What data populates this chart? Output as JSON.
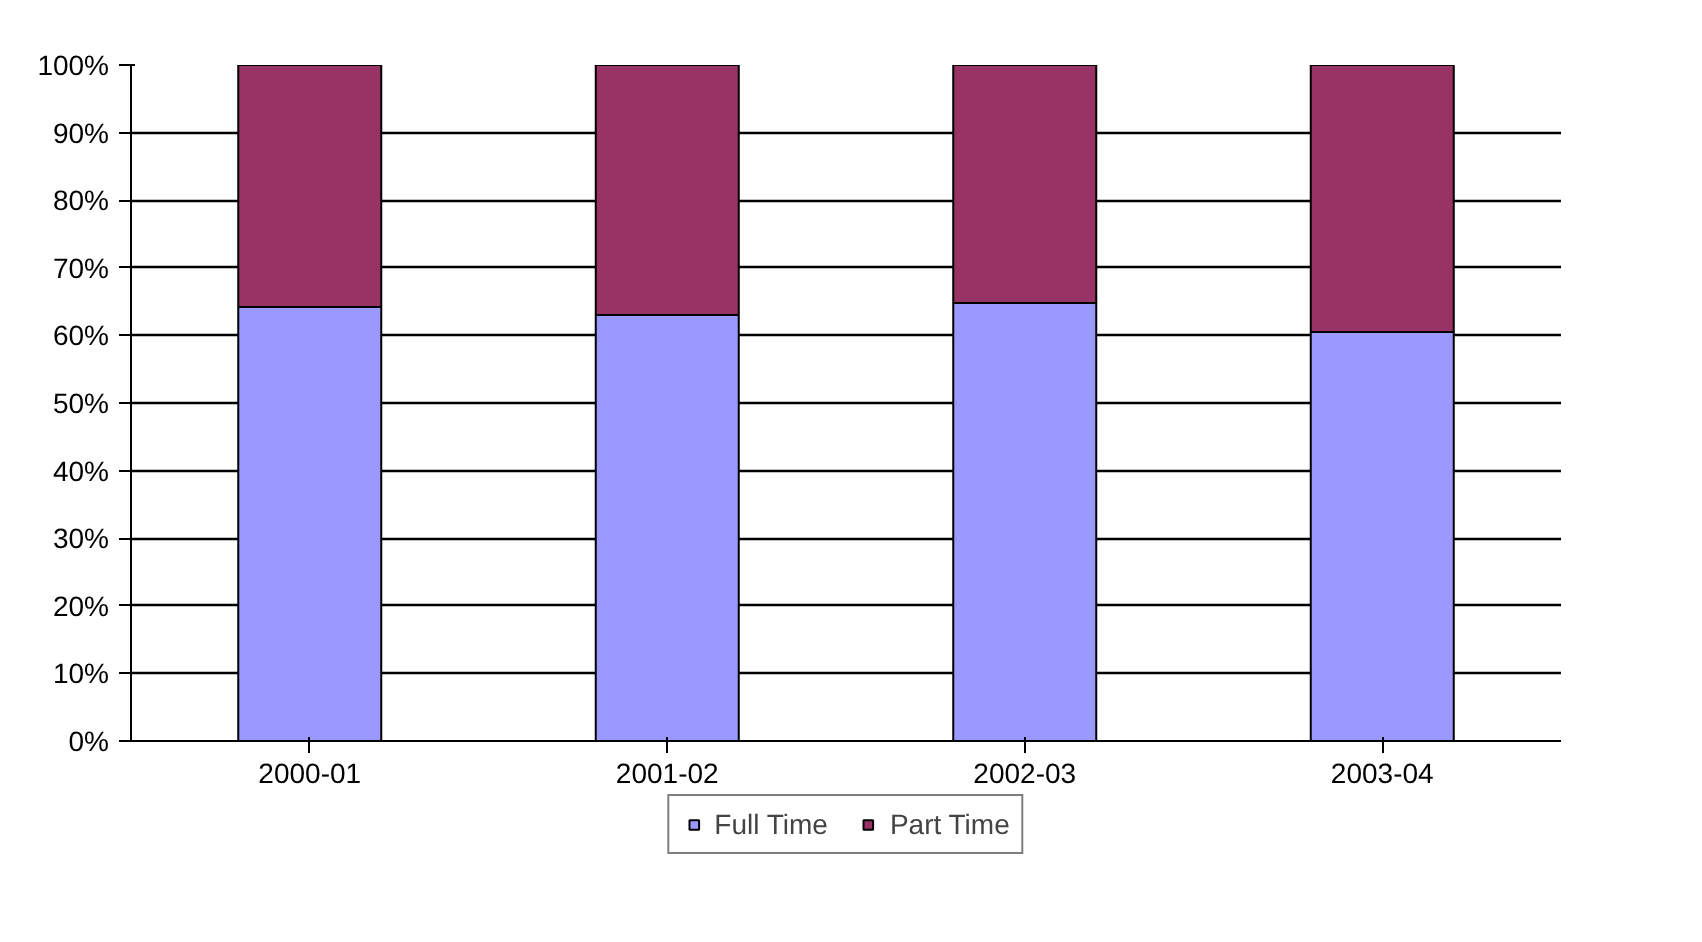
{
  "chart_data": {
    "type": "bar",
    "stacked": true,
    "categories": [
      "2000-01",
      "2001-02",
      "2002-03",
      "2003-04"
    ],
    "series": [
      {
        "name": "Full Time",
        "color": "#9999ff",
        "values": [
          64.2,
          63.0,
          64.8,
          60.5
        ]
      },
      {
        "name": "Part Time",
        "color": "#993366",
        "values": [
          35.8,
          37.0,
          35.2,
          39.5
        ]
      }
    ],
    "ylim": [
      0,
      100
    ],
    "yticks": [
      {
        "value": 0,
        "label": "0%"
      },
      {
        "value": 10,
        "label": "10%"
      },
      {
        "value": 20,
        "label": "20%"
      },
      {
        "value": 30,
        "label": "30%"
      },
      {
        "value": 40,
        "label": "40%"
      },
      {
        "value": 50,
        "label": "50%"
      },
      {
        "value": 60,
        "label": "60%"
      },
      {
        "value": 70,
        "label": "70%"
      },
      {
        "value": 80,
        "label": "80%"
      },
      {
        "value": 90,
        "label": "90%"
      },
      {
        "value": 100,
        "label": "100%"
      }
    ],
    "grid": "y",
    "legend": "bottom"
  }
}
